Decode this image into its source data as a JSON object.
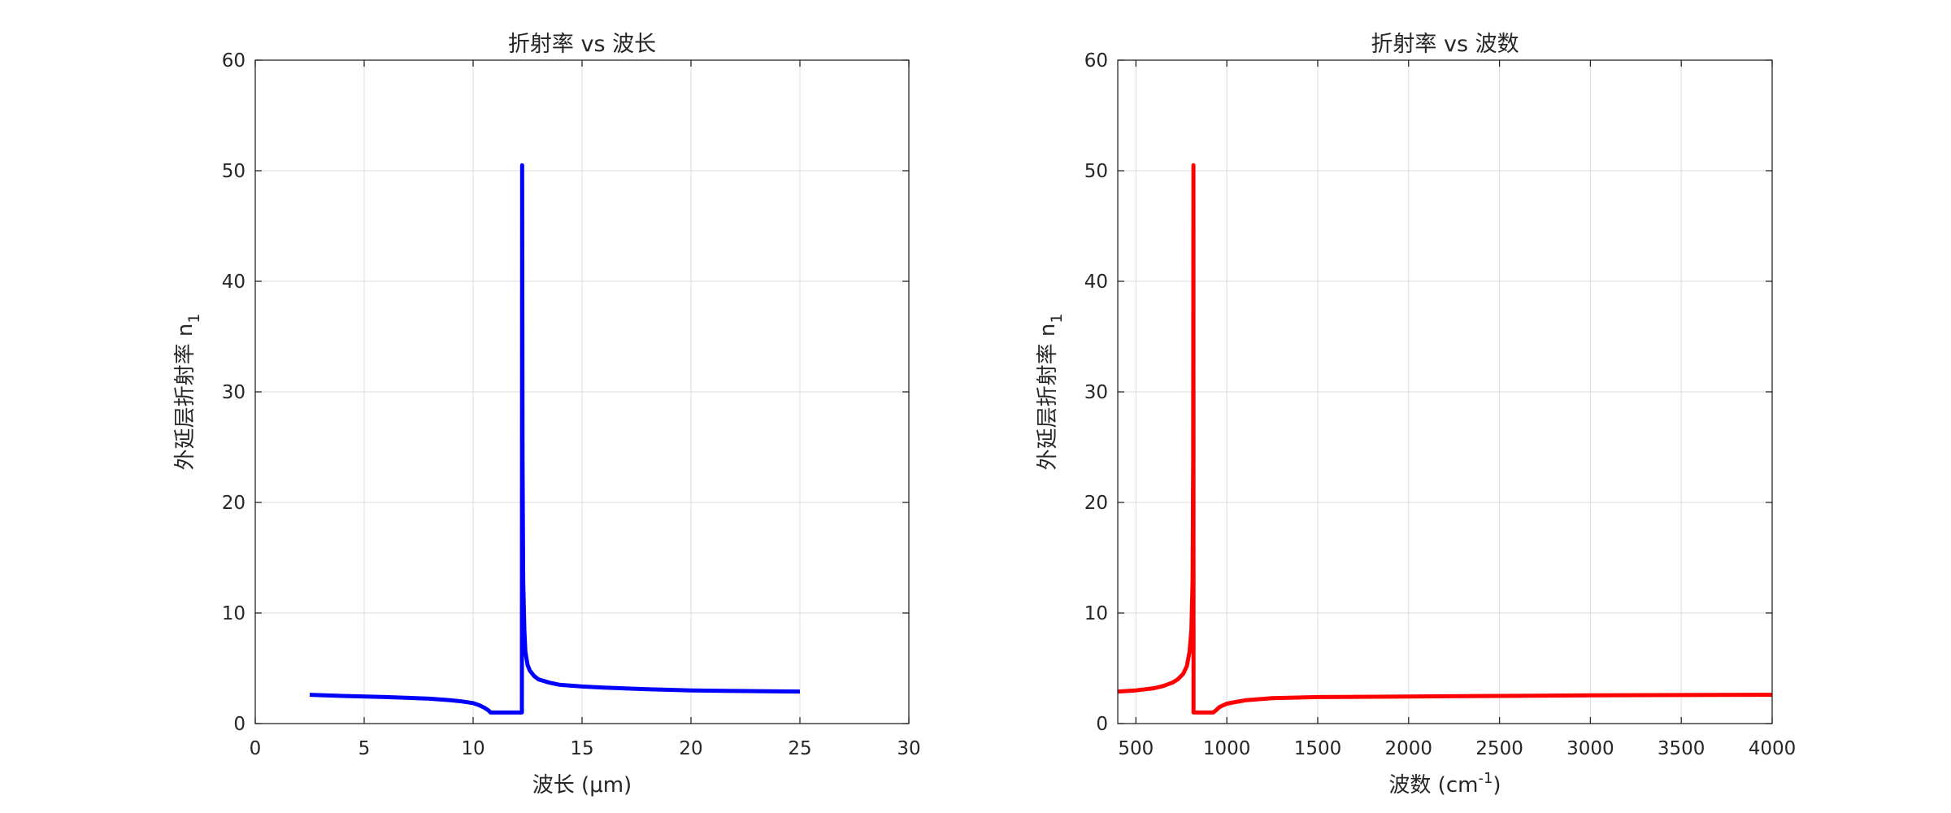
{
  "chart_data": [
    {
      "type": "line",
      "title": "折射率 vs 波长",
      "xlabel": "波长 (μm)",
      "ylabel": "外延层折射率 n",
      "ylabel_sub": "1",
      "xlim": [
        0,
        30
      ],
      "ylim": [
        0,
        60
      ],
      "xticks": [
        0,
        5,
        10,
        15,
        20,
        25,
        30
      ],
      "yticks": [
        0,
        10,
        20,
        30,
        40,
        50,
        60
      ],
      "grid": true,
      "series": [
        {
          "color": "#0000ff",
          "x": [
            2.5,
            4,
            6,
            8,
            9,
            9.5,
            10,
            10.3,
            10.5,
            10.7,
            10.8,
            11.5,
            12.2,
            12.24,
            12.25,
            12.27,
            12.3,
            12.35,
            12.4,
            12.5,
            12.6,
            12.8,
            13,
            13.5,
            14,
            15,
            16,
            18,
            20,
            22,
            25
          ],
          "y": [
            2.6,
            2.5,
            2.4,
            2.25,
            2.1,
            2.0,
            1.85,
            1.65,
            1.45,
            1.2,
            1.0,
            1.0,
            1.0,
            1.0,
            50.5,
            24,
            13,
            8.5,
            6.5,
            5.3,
            4.8,
            4.3,
            4.0,
            3.7,
            3.5,
            3.35,
            3.25,
            3.1,
            3.0,
            2.95,
            2.9
          ]
        }
      ]
    },
    {
      "type": "line",
      "title": "折射率 vs 波数",
      "xlabel": "波数 (cm",
      "xlabel_sup": "-1",
      "xlabel_end": ")",
      "ylabel": "外延层折射率 n",
      "ylabel_sub": "1",
      "xlim": [
        400,
        4000
      ],
      "ylim": [
        0,
        60
      ],
      "xticks": [
        500,
        1000,
        1500,
        2000,
        2500,
        3000,
        3500,
        4000
      ],
      "yticks": [
        0,
        10,
        20,
        30,
        40,
        50,
        60
      ],
      "grid": true,
      "series": [
        {
          "color": "#ff0000",
          "x": [
            400,
            500,
            600,
            650,
            700,
            730,
            760,
            780,
            795,
            805,
            812,
            815,
            816.5,
            817,
            825,
            900,
            925,
            940,
            960,
            1000,
            1100,
            1250,
            1500,
            2000,
            2500,
            3000,
            3500,
            4000
          ],
          "y": [
            2.9,
            3.0,
            3.2,
            3.4,
            3.7,
            4.0,
            4.5,
            5.2,
            6.5,
            8.5,
            13,
            24,
            50.5,
            1.0,
            1.0,
            1.0,
            1.0,
            1.2,
            1.5,
            1.8,
            2.1,
            2.3,
            2.4,
            2.45,
            2.5,
            2.55,
            2.58,
            2.6
          ]
        }
      ]
    }
  ]
}
